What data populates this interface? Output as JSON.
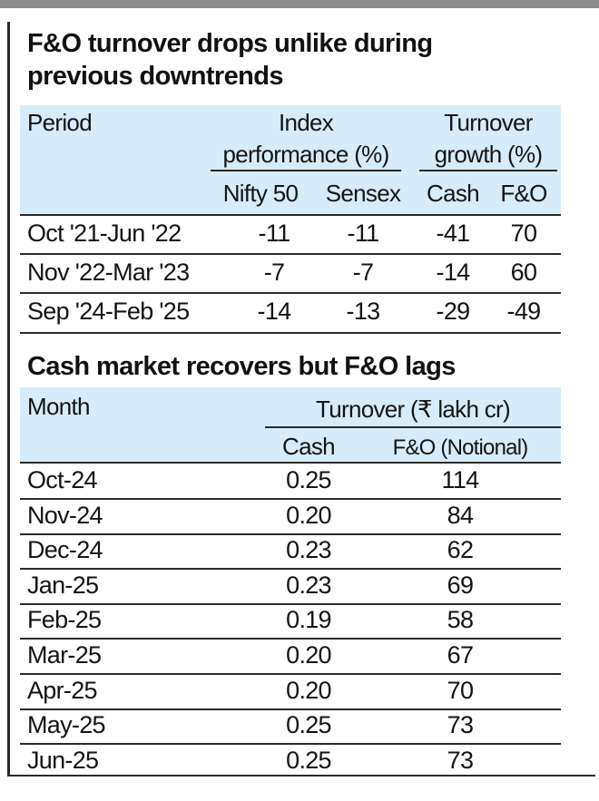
{
  "chart_data": [
    {
      "type": "table",
      "title": "F&O turnover drops unlike during previous downtrends",
      "header": {
        "period": "Period",
        "index_group_line1": "Index",
        "index_group_line2": "performance (%)",
        "turnover_group_line1": "Turnover",
        "turnover_group_line2": "growth (%)",
        "columns": [
          "Nifty 50",
          "Sensex",
          "Cash",
          "F&O"
        ]
      },
      "rows": [
        {
          "period": "Oct '21-Jun '22",
          "values": [
            "-11",
            "-11",
            "-41",
            "70"
          ]
        },
        {
          "period": "Nov '22-Mar '23",
          "values": [
            "-7",
            "-7",
            "-14",
            "60"
          ]
        },
        {
          "period": "Sep '24-Feb '25",
          "values": [
            "-14",
            "-13",
            "-29",
            "-49"
          ]
        }
      ]
    },
    {
      "type": "table",
      "title": "Cash market recovers but F&O lags",
      "header": {
        "month": "Month",
        "group": "Turnover (₹ lakh cr)",
        "columns": [
          "Cash",
          "F&O (Notional)"
        ]
      },
      "rows": [
        {
          "month": "Oct-24",
          "values": [
            "0.25",
            "114"
          ]
        },
        {
          "month": "Nov-24",
          "values": [
            "0.20",
            "84"
          ]
        },
        {
          "month": "Dec-24",
          "values": [
            "0.23",
            "62"
          ]
        },
        {
          "month": "Jan-25",
          "values": [
            "0.23",
            "69"
          ]
        },
        {
          "month": "Feb-25",
          "values": [
            "0.19",
            "58"
          ]
        },
        {
          "month": "Mar-25",
          "values": [
            "0.20",
            "67"
          ]
        },
        {
          "month": "Apr-25",
          "values": [
            "0.20",
            "70"
          ]
        },
        {
          "month": "May-25",
          "values": [
            "0.25",
            "73"
          ]
        },
        {
          "month": "Jun-25",
          "values": [
            "0.25",
            "73"
          ]
        }
      ]
    }
  ]
}
